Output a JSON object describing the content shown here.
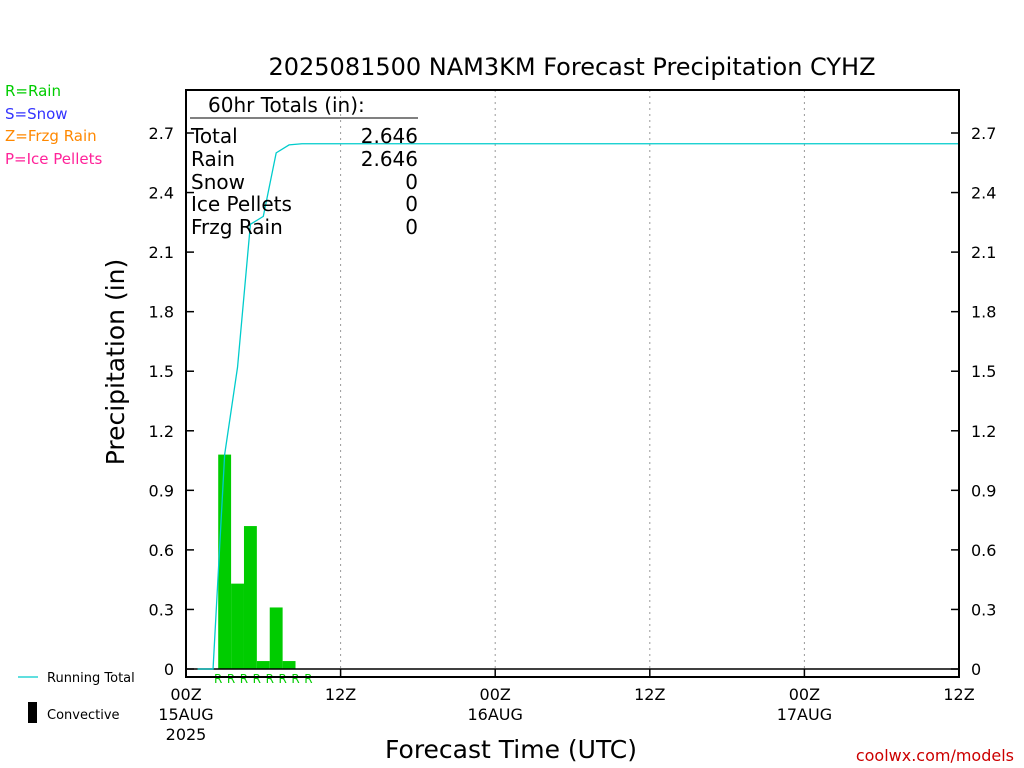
{
  "chart_data": {
    "type": "bar",
    "title": "2025081500 NAM3KM Forecast Precipitation CYHZ",
    "xlabel": "Forecast Time (UTC)",
    "ylabel": "Precipitation (in)",
    "ylim": [
      0,
      2.85
    ],
    "yticks": [
      0,
      0.3,
      0.6,
      0.9,
      1.2,
      1.5,
      1.8,
      2.1,
      2.4,
      2.7
    ],
    "ytick_labels": [
      "0",
      "0.3",
      "0.6",
      "0.9",
      "1.2",
      "1.5",
      "1.8",
      "2.1",
      "2.4",
      "2.7"
    ],
    "xlim_hours": [
      0,
      60
    ],
    "xticks": [
      {
        "hour": 0,
        "label": "00Z",
        "date": "15AUG",
        "year": "2025"
      },
      {
        "hour": 12,
        "label": "12Z",
        "date": "",
        "year": ""
      },
      {
        "hour": 24,
        "label": "00Z",
        "date": "16AUG",
        "year": ""
      },
      {
        "hour": 36,
        "label": "12Z",
        "date": "",
        "year": ""
      },
      {
        "hour": 48,
        "label": "00Z",
        "date": "17AUG",
        "year": ""
      },
      {
        "hour": 60,
        "label": "12Z",
        "date": "",
        "year": ""
      }
    ],
    "bars_hourly": [
      {
        "hour": 3,
        "value": 1.08,
        "type": "R"
      },
      {
        "hour": 4,
        "value": 0.43,
        "type": "R"
      },
      {
        "hour": 5,
        "value": 0.72,
        "type": "R"
      },
      {
        "hour": 6,
        "value": 0.04,
        "type": "R"
      },
      {
        "hour": 7,
        "value": 0.31,
        "type": "R"
      },
      {
        "hour": 8,
        "value": 0.04,
        "type": "R"
      }
    ],
    "running_total": {
      "name": "Running Total",
      "points": [
        [
          0.9,
          0
        ],
        [
          2.1,
          0
        ],
        [
          3.0,
          1.08
        ],
        [
          4.0,
          1.52
        ],
        [
          5.0,
          2.24
        ],
        [
          6.0,
          2.28
        ],
        [
          7.0,
          2.6
        ],
        [
          8.0,
          2.64
        ],
        [
          9.0,
          2.646
        ],
        [
          60,
          2.646
        ]
      ]
    },
    "precip_type_markers": {
      "hours": [
        2.5,
        3.5,
        4.5,
        5.5,
        6.5,
        7.5,
        8.5,
        9.5
      ],
      "letter": "R"
    },
    "grid": {
      "vertical_dotted": true,
      "horizontal": false
    },
    "colors": {
      "rain": "#00cc00",
      "snow": "#3333ff",
      "frzg_rain": "#ff8800",
      "ice_pellets": "#ff2299",
      "running_total": "#00cccc",
      "convective": "#000000",
      "watermark": "#cc0000"
    }
  },
  "totals_box": {
    "header": "60hr Totals (in):",
    "rows": [
      {
        "label": "Total",
        "value": "2.646"
      },
      {
        "label": "Rain",
        "value": "2.646"
      },
      {
        "label": "Snow",
        "value": "0"
      },
      {
        "label": "Ice Pellets",
        "value": "0"
      },
      {
        "label": "Frzg Rain",
        "value": "0"
      }
    ]
  },
  "type_legend": [
    {
      "label": "R=Rain",
      "color": "#00cc00"
    },
    {
      "label": "S=Snow",
      "color": "#3333ff"
    },
    {
      "label": "Z=Frzg Rain",
      "color": "#ff8800"
    },
    {
      "label": "P=Ice Pellets",
      "color": "#ff2299"
    }
  ],
  "bottom_legend": {
    "running_total": "Running Total",
    "convective": "Convective"
  },
  "watermark": "coolwx.com/models"
}
